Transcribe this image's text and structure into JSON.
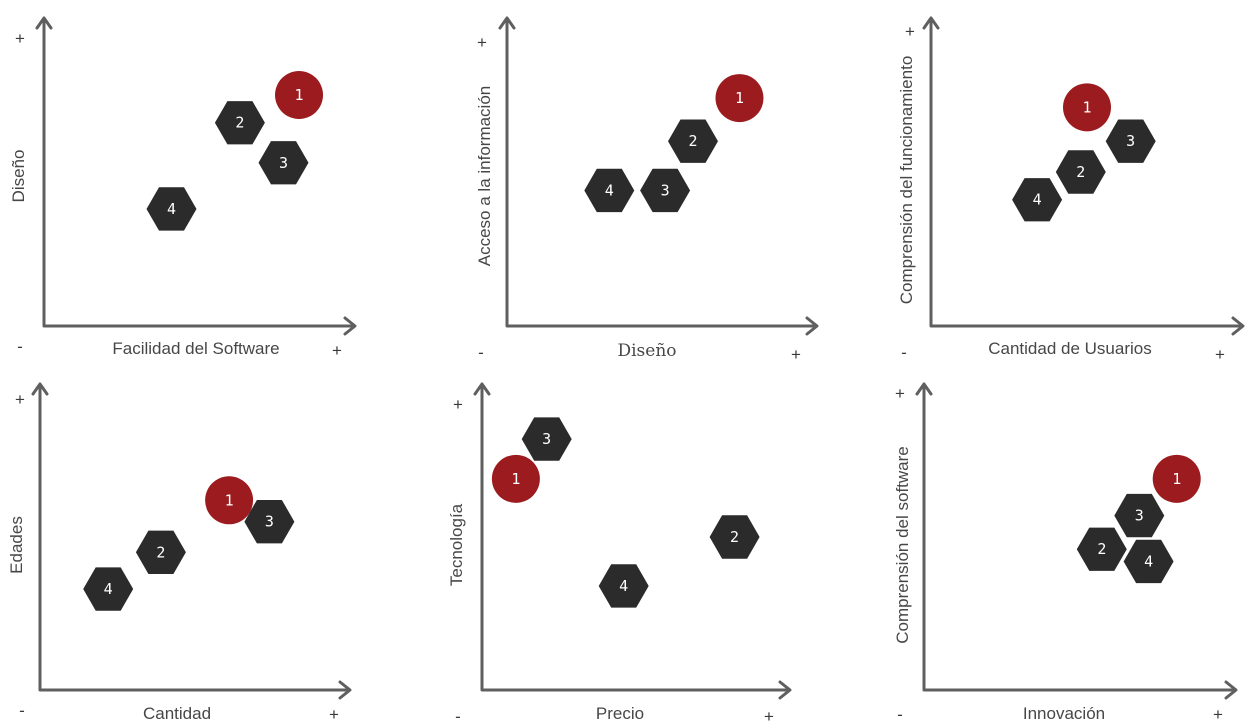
{
  "chart_data": [
    {
      "type": "scatter",
      "xlabel": "Facilidad del Software",
      "ylabel": "Diseño",
      "min_label": "-",
      "max_label": "+",
      "points": [
        {
          "label": "1",
          "x": 0.82,
          "y": 0.75,
          "highlight": true
        },
        {
          "label": "2",
          "x": 0.63,
          "y": 0.66,
          "highlight": false
        },
        {
          "label": "3",
          "x": 0.77,
          "y": 0.53,
          "highlight": false
        },
        {
          "label": "4",
          "x": 0.41,
          "y": 0.38,
          "highlight": false
        }
      ]
    },
    {
      "type": "scatter",
      "xlabel": "Diseño",
      "ylabel": "Acceso a la información",
      "min_label": "-",
      "max_label": "+",
      "points": [
        {
          "label": "1",
          "x": 0.75,
          "y": 0.74,
          "highlight": true
        },
        {
          "label": "2",
          "x": 0.6,
          "y": 0.6,
          "highlight": false
        },
        {
          "label": "3",
          "x": 0.51,
          "y": 0.44,
          "highlight": false
        },
        {
          "label": "4",
          "x": 0.33,
          "y": 0.44,
          "highlight": false
        }
      ]
    },
    {
      "type": "scatter",
      "xlabel": "Cantidad de Usuarios",
      "ylabel": "Comprensión del funcionamiento",
      "min_label": "-",
      "max_label": "+",
      "points": [
        {
          "label": "1",
          "x": 0.5,
          "y": 0.71,
          "highlight": true
        },
        {
          "label": "2",
          "x": 0.48,
          "y": 0.5,
          "highlight": false
        },
        {
          "label": "3",
          "x": 0.64,
          "y": 0.6,
          "highlight": false
        },
        {
          "label": "4",
          "x": 0.34,
          "y": 0.41,
          "highlight": false
        }
      ]
    },
    {
      "type": "scatter",
      "xlabel": "Cantidad",
      "ylabel": "Edades",
      "min_label": "-",
      "max_label": "+",
      "points": [
        {
          "label": "1",
          "x": 0.61,
          "y": 0.62,
          "highlight": true
        },
        {
          "label": "2",
          "x": 0.39,
          "y": 0.45,
          "highlight": false
        },
        {
          "label": "3",
          "x": 0.74,
          "y": 0.55,
          "highlight": false
        },
        {
          "label": "4",
          "x": 0.22,
          "y": 0.33,
          "highlight": false
        }
      ]
    },
    {
      "type": "scatter",
      "xlabel": "Precio",
      "ylabel": "Tecnología",
      "min_label": "-",
      "max_label": "+",
      "points": [
        {
          "label": "1",
          "x": 0.11,
          "y": 0.69,
          "highlight": true
        },
        {
          "label": "2",
          "x": 0.82,
          "y": 0.5,
          "highlight": false
        },
        {
          "label": "3",
          "x": 0.21,
          "y": 0.82,
          "highlight": false
        },
        {
          "label": "4",
          "x": 0.46,
          "y": 0.34,
          "highlight": false
        }
      ]
    },
    {
      "type": "scatter",
      "xlabel": "Innovación",
      "ylabel": "Comprensión del software",
      "min_label": "-",
      "max_label": "+",
      "points": [
        {
          "label": "1",
          "x": 0.81,
          "y": 0.69,
          "highlight": true
        },
        {
          "label": "2",
          "x": 0.57,
          "y": 0.46,
          "highlight": false
        },
        {
          "label": "3",
          "x": 0.69,
          "y": 0.57,
          "highlight": false
        },
        {
          "label": "4",
          "x": 0.72,
          "y": 0.42,
          "highlight": false
        }
      ]
    }
  ],
  "colors": {
    "highlight": "#9b1b1f",
    "default": "#2b2b2b",
    "axis": "#5f5f5f"
  },
  "marker_shapes": {
    "highlight": "circle",
    "default": "hexagon"
  }
}
